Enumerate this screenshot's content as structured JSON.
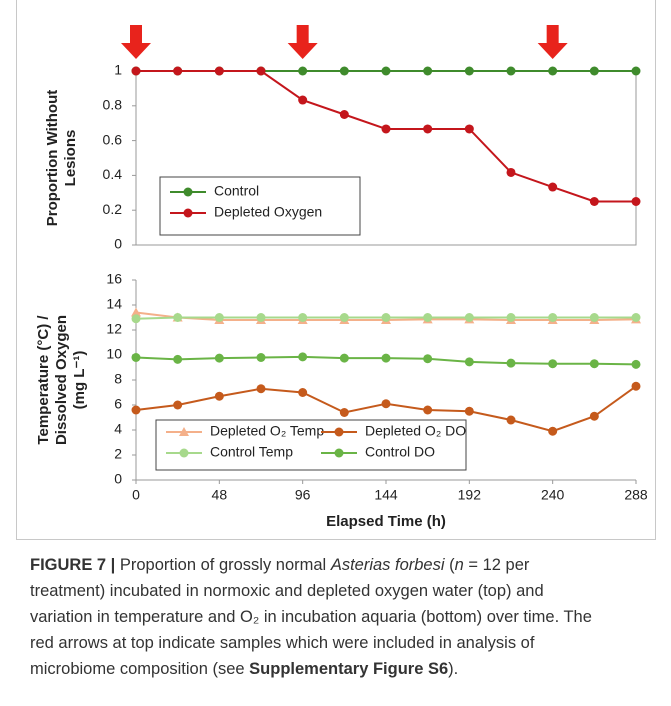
{
  "chart_data": [
    {
      "type": "line",
      "ylabel": [
        "Proportion Without",
        "Lesions"
      ],
      "x": [
        0,
        24,
        48,
        72,
        96,
        120,
        144,
        168,
        192,
        216,
        240,
        264,
        288
      ],
      "xlim": [
        0,
        288
      ],
      "ylim": [
        0,
        1
      ],
      "yticks": [
        0,
        0.2,
        0.4,
        0.6,
        0.8,
        1
      ],
      "arrows": [
        0,
        96,
        240
      ],
      "arrow_color": "#e8231c",
      "legend": "lower left",
      "legend_columns": 1,
      "frame": true,
      "series": [
        {
          "name": "Control",
          "color": "#3f8b2c",
          "marker": "circle",
          "values": [
            1,
            1,
            1,
            1,
            1,
            1,
            1,
            1,
            1,
            1,
            1,
            1,
            1
          ]
        },
        {
          "name": "Depleted Oxygen",
          "color": "#c4161c",
          "marker": "circle",
          "values": [
            1,
            1,
            1,
            1,
            0.833,
            0.75,
            0.667,
            0.667,
            0.667,
            0.417,
            0.333,
            0.25,
            0.25
          ]
        }
      ]
    },
    {
      "type": "line",
      "ylabel": [
        "Temperature (°C) /",
        "Dissolved Oxygen",
        "(mg L⁻¹)"
      ],
      "xlabel": "Elapsed Time (h)",
      "x": [
        0,
        24,
        48,
        72,
        96,
        120,
        144,
        168,
        192,
        216,
        240,
        264,
        288
      ],
      "xlim": [
        0,
        288
      ],
      "xticks": [
        0,
        48,
        96,
        144,
        192,
        240,
        288
      ],
      "ylim": [
        0,
        16
      ],
      "yticks": [
        0,
        2,
        4,
        6,
        8,
        10,
        12,
        14,
        16
      ],
      "legend": "lower left",
      "legend_columns": 2,
      "frame": false,
      "series": [
        {
          "name": "Depleted O₂ Temp",
          "color": "#f4b08a",
          "marker": "triangle",
          "values": [
            13.4,
            13,
            12.8,
            12.8,
            12.8,
            12.8,
            12.8,
            12.85,
            12.85,
            12.8,
            12.8,
            12.8,
            12.85
          ]
        },
        {
          "name": "Depleted O₂ DO",
          "color": "#c55a1c",
          "marker": "circle",
          "values": [
            5.6,
            6,
            6.7,
            7.3,
            7,
            5.4,
            6.1,
            5.6,
            5.5,
            4.8,
            3.9,
            5.1,
            7.5
          ]
        },
        {
          "name": "Control Temp",
          "color": "#a7d98c",
          "marker": "circle",
          "values": [
            12.9,
            13,
            13,
            13,
            13,
            13,
            13,
            13,
            13,
            13,
            13,
            13,
            13
          ]
        },
        {
          "name": "Control DO",
          "color": "#6ab446",
          "marker": "circle",
          "values": [
            9.8,
            9.65,
            9.75,
            9.8,
            9.85,
            9.75,
            9.75,
            9.7,
            9.45,
            9.35,
            9.3,
            9.3,
            9.25
          ]
        }
      ]
    }
  ],
  "caption": [
    [
      {
        "text": "FIGURE 7 |",
        "style": "bold"
      },
      {
        "text": " Proportion of grossly normal ",
        "style": "normal"
      },
      {
        "text": "Asterias forbesi",
        "style": "italic"
      },
      {
        "text": " (",
        "style": "normal"
      },
      {
        "text": "n",
        "style": "italic"
      },
      {
        "text": " = 12 per",
        "style": "normal"
      }
    ],
    [
      {
        "text": "treatment) incubated in normoxic and depleted oxygen water (top) and",
        "style": "normal"
      }
    ],
    [
      {
        "text": "variation in temperature and O₂ in incubation aquaria (bottom) over time. The",
        "style": "normal"
      }
    ],
    [
      {
        "text": "red arrows at top indicate samples which were included in analysis of",
        "style": "normal"
      }
    ],
    [
      {
        "text": "microbiome composition (see ",
        "style": "normal"
      },
      {
        "text": "Supplementary Figure S6",
        "style": "bold"
      },
      {
        "text": ").",
        "style": "normal"
      }
    ]
  ]
}
